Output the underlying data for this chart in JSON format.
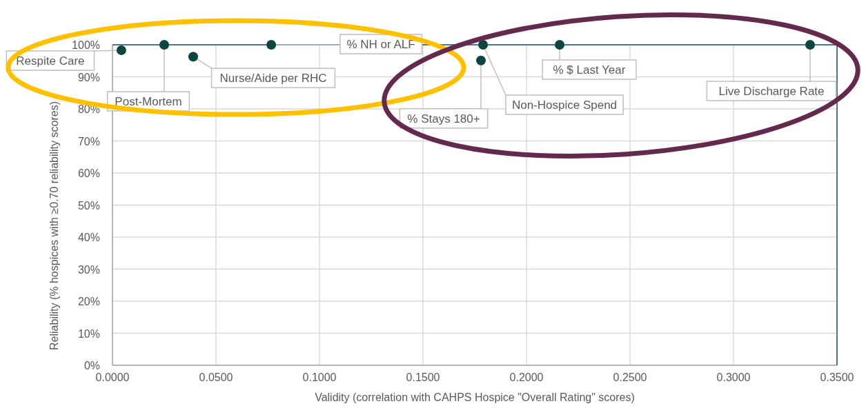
{
  "chart_data": {
    "type": "scatter",
    "xlabel": "Validity (correlation with CAHPS Hospice \"Overall Rating\" scores)",
    "ylabel": "Reliability (% hospices with ≥0.70 reliability scores)",
    "x": [
      0.0043,
      0.025,
      0.039,
      0.0767,
      0.179,
      0.178,
      0.216,
      0.337
    ],
    "values": [
      98.3,
      100,
      96.3,
      100,
      100,
      95.1,
      100,
      100
    ],
    "color": "#0d4540",
    "marker": "circle",
    "grid": true,
    "xlim": [
      0,
      0.35
    ],
    "ylim": [
      0,
      100
    ],
    "xticks": [
      {
        "value": 0,
        "label": "0.0000"
      },
      {
        "value": 0.05,
        "label": "0.0500"
      },
      {
        "value": 0.1,
        "label": "0.1000"
      },
      {
        "value": 0.15,
        "label": "0.1500"
      },
      {
        "value": 0.2,
        "label": "0.2000"
      },
      {
        "value": 0.25,
        "label": "0.2500"
      },
      {
        "value": 0.3,
        "label": "0.3000"
      },
      {
        "value": 0.35,
        "label": "0.3500"
      }
    ],
    "yticks": [
      {
        "value": 0,
        "label": "0%"
      },
      {
        "value": 10,
        "label": "10%"
      },
      {
        "value": 20,
        "label": "20%"
      },
      {
        "value": 30,
        "label": "30%"
      },
      {
        "value": 40,
        "label": "40%"
      },
      {
        "value": 50,
        "label": "50%"
      },
      {
        "value": 60,
        "label": "60%"
      },
      {
        "value": 70,
        "label": "70%"
      },
      {
        "value": 80,
        "label": "80%"
      },
      {
        "value": 90,
        "label": "90%"
      },
      {
        "value": 100,
        "label": "100%"
      }
    ],
    "annotations": [
      {
        "text": "Respite Care",
        "x": 0.0043,
        "y": 98.3
      },
      {
        "text": "Post-Mortem",
        "x": 0.025,
        "y": 100
      },
      {
        "text": "Nurse/Aide per RHC",
        "x": 0.039,
        "y": 96.3
      },
      {
        "text": "% NH or ALF",
        "x": 0.0767,
        "y": 100
      },
      {
        "text": "Non-Hospice Spend",
        "x": 0.179,
        "y": 100
      },
      {
        "text": "% Stays 180+",
        "x": 0.178,
        "y": 95.1
      },
      {
        "text": "% $ Last Year",
        "x": 0.216,
        "y": 100
      },
      {
        "text": "Live Discharge Rate",
        "x": 0.337,
        "y": 100
      }
    ]
  }
}
